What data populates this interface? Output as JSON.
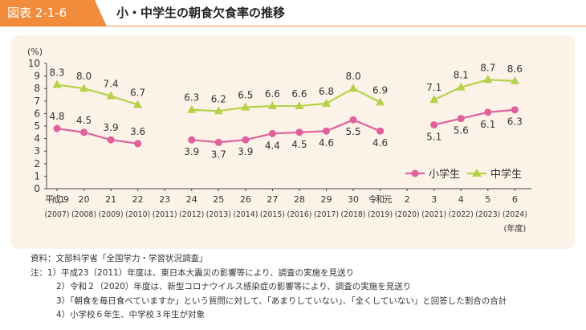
{
  "header": {
    "badge": "図表 2-1-6",
    "title": "小・中学生の朝食欠食率の推移"
  },
  "colors": {
    "accent": "#f08c3c",
    "panel": "#fdf2e7",
    "elementary": "#e0609b",
    "junior": "#b6d14a"
  },
  "chart_data": {
    "type": "line",
    "ylabel": "(%)",
    "ylim": [
      0,
      10
    ],
    "yticks": [
      "0",
      "1",
      "2",
      "3",
      "4",
      "5",
      "6",
      "7",
      "8",
      "9",
      "10"
    ],
    "categories": [
      {
        "era": "平成19",
        "year": "(2007)"
      },
      {
        "era": "20",
        "year": "(2008)"
      },
      {
        "era": "21",
        "year": "(2009)"
      },
      {
        "era": "22",
        "year": "(2010)"
      },
      {
        "era": "23",
        "year": "(2011)"
      },
      {
        "era": "24",
        "year": "(2012)"
      },
      {
        "era": "25",
        "year": "(2013)"
      },
      {
        "era": "26",
        "year": "(2014)"
      },
      {
        "era": "27",
        "year": "(2015)"
      },
      {
        "era": "28",
        "year": "(2016)"
      },
      {
        "era": "29",
        "year": "(2017)"
      },
      {
        "era": "30",
        "year": "(2018)"
      },
      {
        "era": "令和元",
        "year": "(2019)"
      },
      {
        "era": "2",
        "year": "(2020)"
      },
      {
        "era": "3",
        "year": "(2021)"
      },
      {
        "era": "4",
        "year": "(2022)"
      },
      {
        "era": "5",
        "year": "(2023)"
      },
      {
        "era": "6",
        "year": "(2024)"
      }
    ],
    "x_unit": "(年度)",
    "series": [
      {
        "name": "小学生",
        "marker": "circle",
        "values": [
          4.8,
          4.5,
          3.9,
          3.6,
          null,
          3.9,
          3.7,
          3.9,
          4.4,
          4.5,
          4.6,
          5.5,
          4.6,
          null,
          5.1,
          5.6,
          6.1,
          6.3
        ],
        "labels": [
          "4.8",
          "4.5",
          "3.9",
          "3.6",
          null,
          "3.9",
          "3.7",
          "3.9",
          "4.4",
          "4.5",
          "4.6",
          "5.5",
          "4.6",
          null,
          "5.1",
          "5.6",
          "6.1",
          "6.3"
        ]
      },
      {
        "name": "中学生",
        "marker": "triangle",
        "values": [
          8.3,
          8.0,
          7.4,
          6.7,
          null,
          6.3,
          6.2,
          6.5,
          6.6,
          6.6,
          6.8,
          8.0,
          6.9,
          null,
          7.1,
          8.1,
          8.7,
          8.6
        ],
        "labels": [
          "8.3",
          "8.0",
          "7.4",
          "6.7",
          null,
          "6.3",
          "6.2",
          "6.5",
          "6.6",
          "6.6",
          "6.8",
          "8.0",
          "6.9",
          null,
          "7.1",
          "8.1",
          "8.7",
          "8.6"
        ]
      }
    ],
    "legend_position": "bottom-right"
  },
  "notes": {
    "source": "資料：文部科学省「全国学力・学習状況調査」",
    "note1": "注：1）平成23（2011）年度は、東日本大震災の影響等により、調査の実施を見送り",
    "note2": "2）令和２（2020）年度は、新型コロナウイルス感染症の影響等により、調査の実施を見送り",
    "note3": "3）「朝食を毎日食べていますか」という質問に対して、「あまりしていない」、「全くしていない」と回答した割合の合計",
    "note4": "4）小学校６年生、中学校３年生が対象"
  }
}
